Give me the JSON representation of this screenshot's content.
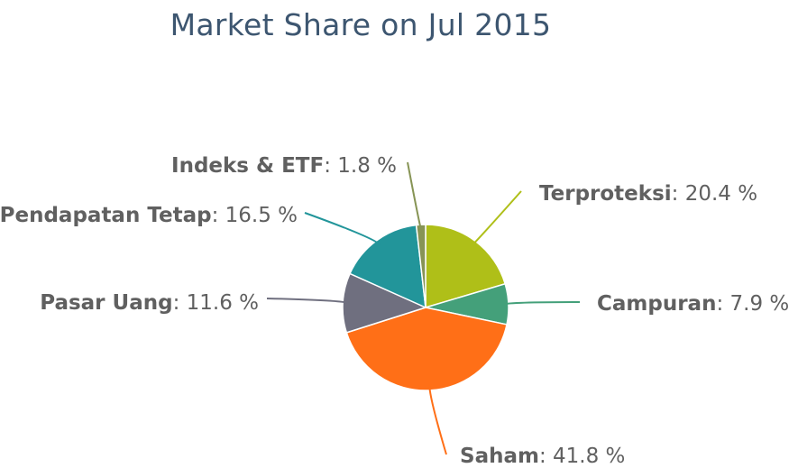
{
  "chart_data": {
    "type": "pie",
    "title": "Market Share on Jul 2015",
    "unit": "%",
    "slices": [
      {
        "name": "Terproteksi",
        "value": 20.4,
        "label": "20.4 %",
        "color": "#afbf18"
      },
      {
        "name": "Campuran",
        "value": 7.9,
        "label": "7.9 %",
        "color": "#44a07a"
      },
      {
        "name": "Saham",
        "value": 41.8,
        "label": "41.8 %",
        "color": "#ff6f17"
      },
      {
        "name": "Pasar Uang",
        "value": 11.6,
        "label": "11.6 %",
        "color": "#6f6f7f"
      },
      {
        "name": "Pendapatan Tetap",
        "value": 16.5,
        "label": "16.5 %",
        "color": "#22959a"
      },
      {
        "name": "Indeks & ETF",
        "value": 1.8,
        "label": "1.8 %",
        "color": "#879455"
      }
    ],
    "legend": "none"
  }
}
